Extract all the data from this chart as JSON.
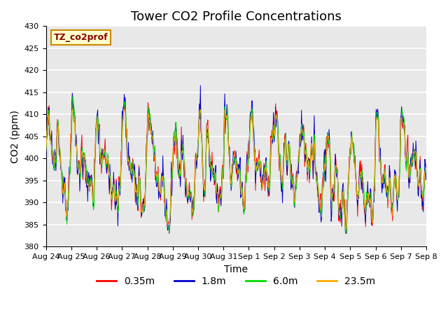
{
  "title": "Tower CO2 Profile Concentrations",
  "xlabel": "Time",
  "ylabel": "CO2 (ppm)",
  "ylim": [
    380,
    430
  ],
  "legend_label": "TZ_co2prof",
  "series_labels": [
    "0.35m",
    "1.8m",
    "6.0m",
    "23.5m"
  ],
  "series_colors": [
    "#ff0000",
    "#0000cc",
    "#00dd00",
    "#ffaa00"
  ],
  "plot_bg_color": "#e8e8e8",
  "grid_color": "#ffffff",
  "title_fontsize": 13,
  "axis_fontsize": 10,
  "tick_fontsize": 8,
  "legend_box_facecolor": "#ffffcc",
  "legend_box_edgecolor": "#cc8800",
  "legend_label_color": "#880000",
  "tick_labels": [
    "Aug 24",
    "Aug 25",
    "Aug 26",
    "Aug 27",
    "Aug 28",
    "Aug 29",
    "Aug 30",
    "Aug 31",
    "Sep 1",
    "Sep 2",
    "Sep 3",
    "Sep 4",
    "Sep 5",
    "Sep 6",
    "Sep 7",
    "Sep 8"
  ]
}
